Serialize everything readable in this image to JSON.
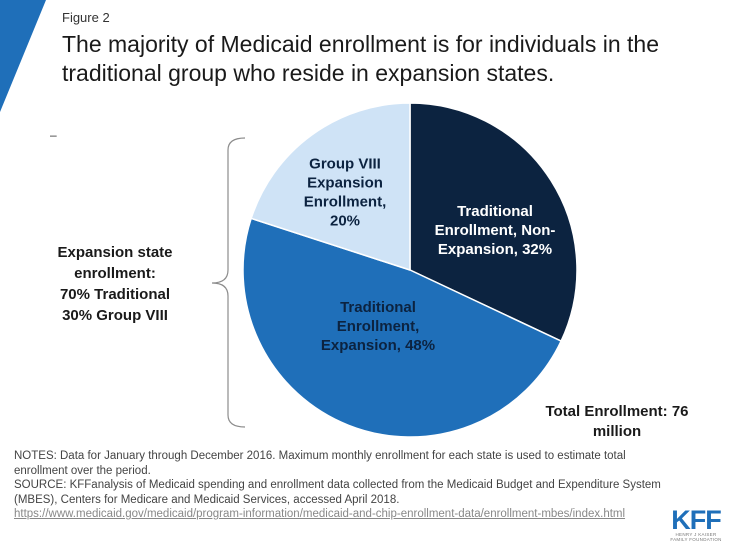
{
  "figure_label": "Figure 2",
  "title": "The majority of Medicaid enrollment is for individuals in the traditional group who reside in expansion states.",
  "dash": "–",
  "chart_data": {
    "type": "pie",
    "title": "The majority of Medicaid enrollment is for individuals in the traditional group who reside in expansion states.",
    "slices": [
      {
        "label_lines": [
          "Traditional",
          "Enrollment, Non-",
          "Expansion, 32%"
        ],
        "name": "Traditional Enrollment, Non-Expansion",
        "value": 32,
        "color": "#0c2340",
        "text_color": "#ffffff"
      },
      {
        "label_lines": [
          "Traditional",
          "Enrollment,",
          "Expansion, 48%"
        ],
        "name": "Traditional Enrollment, Expansion",
        "value": 48,
        "color": "#1f6fb9",
        "text_color": "#0c2340"
      },
      {
        "label_lines": [
          "Group VIII",
          "Expansion",
          "Enrollment,",
          "20%"
        ],
        "name": "Group VIII Expansion Enrollment",
        "value": 20,
        "color": "#cfe3f6",
        "text_color": "#0c2340"
      }
    ],
    "start_angle_deg": 0,
    "direction": "clockwise"
  },
  "side_label": {
    "lines": [
      "Expansion state",
      "enrollment:",
      "70% Traditional",
      "30% Group VIII"
    ]
  },
  "total_label": {
    "lines": [
      "Total Enrollment: 76",
      "million"
    ]
  },
  "notes": {
    "line1": "NOTES: Data for January through December 2016. Maximum monthly enrollment for each state is used to estimate total enrollment over the period.",
    "line2": "SOURCE: KFFanalysis of Medicaid spending and enrollment data collected from the Medicaid Budget and Expenditure System (MBES), Centers for Medicare and Medicaid Services, accessed April 2018.",
    "link": "https://www.medicaid.gov/medicaid/program-information/medicaid-and-chip-enrollment-data/enrollment-mbes/index.html"
  },
  "logo": {
    "text": "KFF",
    "sub_line1": "HENRY J KAISER",
    "sub_line2": "FAMILY FOUNDATION"
  },
  "colors": {
    "accent": "#1f6fb9",
    "dark_navy": "#0c2340",
    "light_blue": "#cfe3f6"
  }
}
